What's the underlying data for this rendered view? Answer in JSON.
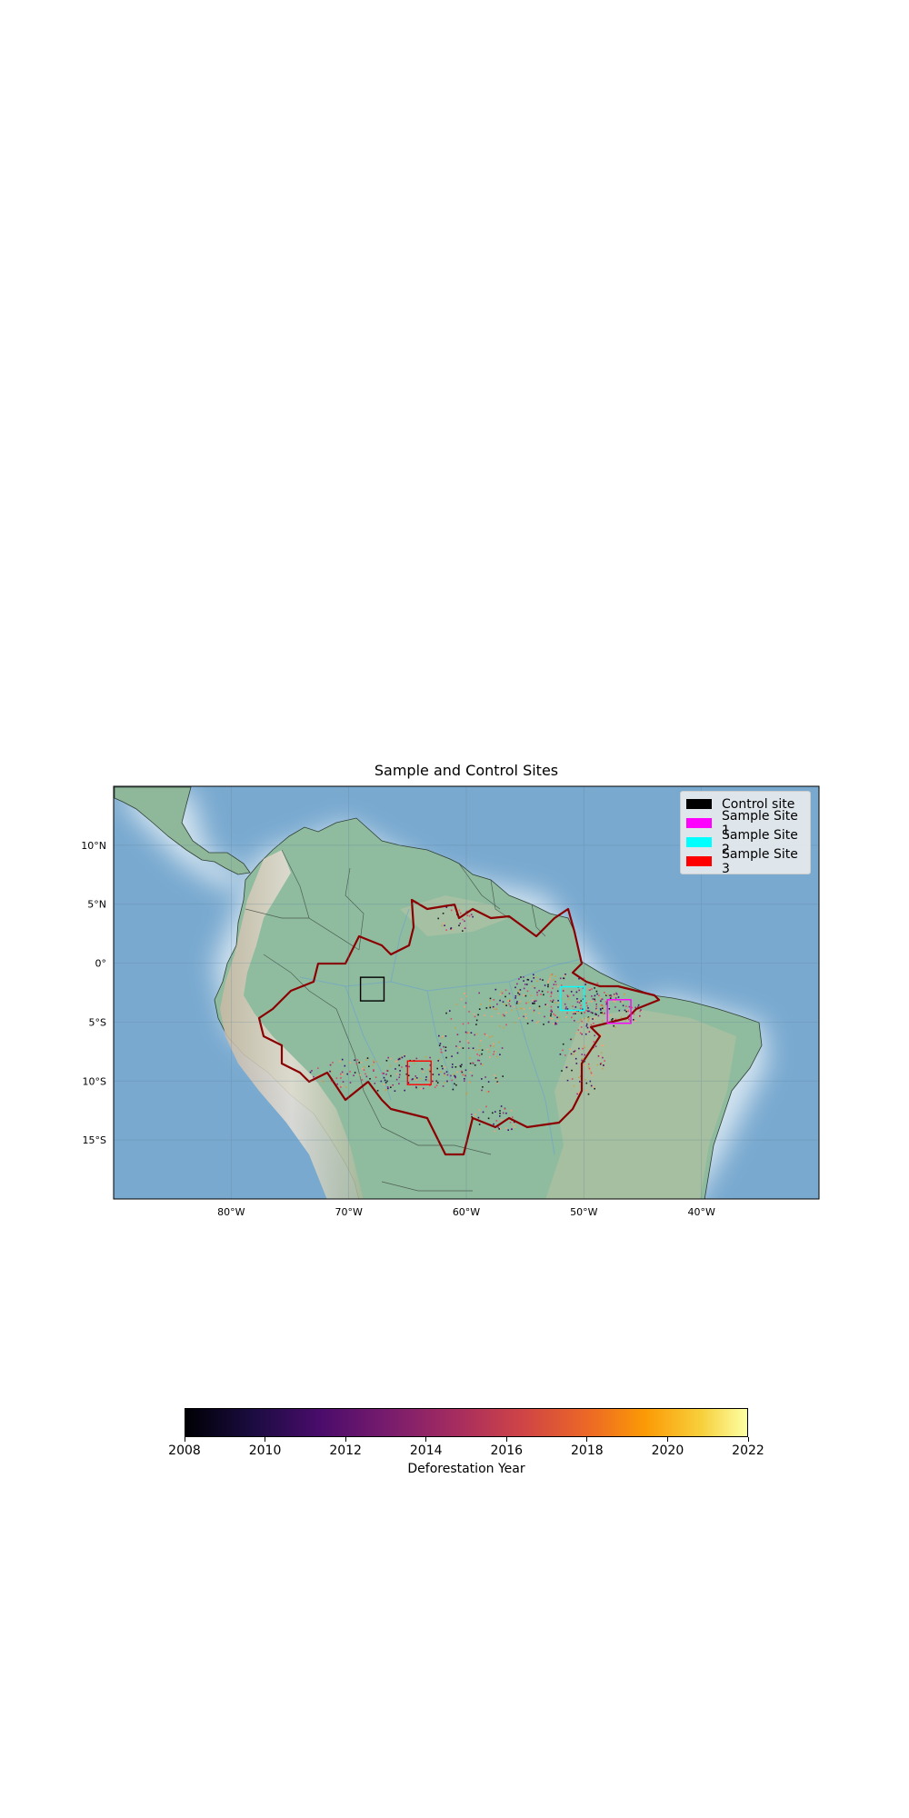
{
  "map": {
    "title": "Sample and Control Sites",
    "projection": "PlateCarree",
    "extent_lon": [
      -90,
      -30
    ],
    "extent_lat": [
      -20,
      15
    ],
    "basemap": "shaded relief",
    "gridlines": true,
    "x_ticks": [
      {
        "lon": -80,
        "label": "80°W"
      },
      {
        "lon": -70,
        "label": "70°W"
      },
      {
        "lon": -60,
        "label": "60°W"
      },
      {
        "lon": -50,
        "label": "50°W"
      },
      {
        "lon": -40,
        "label": "40°W"
      }
    ],
    "y_ticks": [
      {
        "lat": 10,
        "label": "10°N"
      },
      {
        "lat": 5,
        "label": "5°N"
      },
      {
        "lat": 0,
        "label": "0°"
      },
      {
        "lat": -5,
        "label": "5°S"
      },
      {
        "lat": -10,
        "label": "10°S"
      },
      {
        "lat": -15,
        "label": "15°S"
      }
    ],
    "region_outline_color": "#8b0000",
    "sites": [
      {
        "name": "Control site",
        "color": "#000000",
        "lon": [
          -69,
          -67
        ],
        "lat": [
          -3.2,
          -1.2
        ]
      },
      {
        "name": "Sample Site 1",
        "color": "#ff00ff",
        "lon": [
          -48,
          -46
        ],
        "lat": [
          -5.1,
          -3.1
        ]
      },
      {
        "name": "Sample Site 2",
        "color": "#00ffff",
        "lon": [
          -52,
          -50
        ],
        "lat": [
          -4,
          -2
        ]
      },
      {
        "name": "Sample Site 3",
        "color": "#ff0000",
        "lon": [
          -65,
          -63
        ],
        "lat": [
          -10.3,
          -8.3
        ]
      }
    ],
    "legend": {
      "position": "upper right",
      "entries": [
        {
          "label": "Control site",
          "color": "#000000"
        },
        {
          "label": "Sample Site 1",
          "color": "#ff00ff"
        },
        {
          "label": "Sample Site 2",
          "color": "#00ffff"
        },
        {
          "label": "Sample Site 3",
          "color": "#ff0000"
        }
      ]
    }
  },
  "colorbar": {
    "label": "Deforestation Year",
    "colormap": "inferno",
    "range": [
      2008,
      2022
    ],
    "ticks": [
      "2008",
      "2010",
      "2012",
      "2014",
      "2016",
      "2018",
      "2020",
      "2022"
    ]
  }
}
